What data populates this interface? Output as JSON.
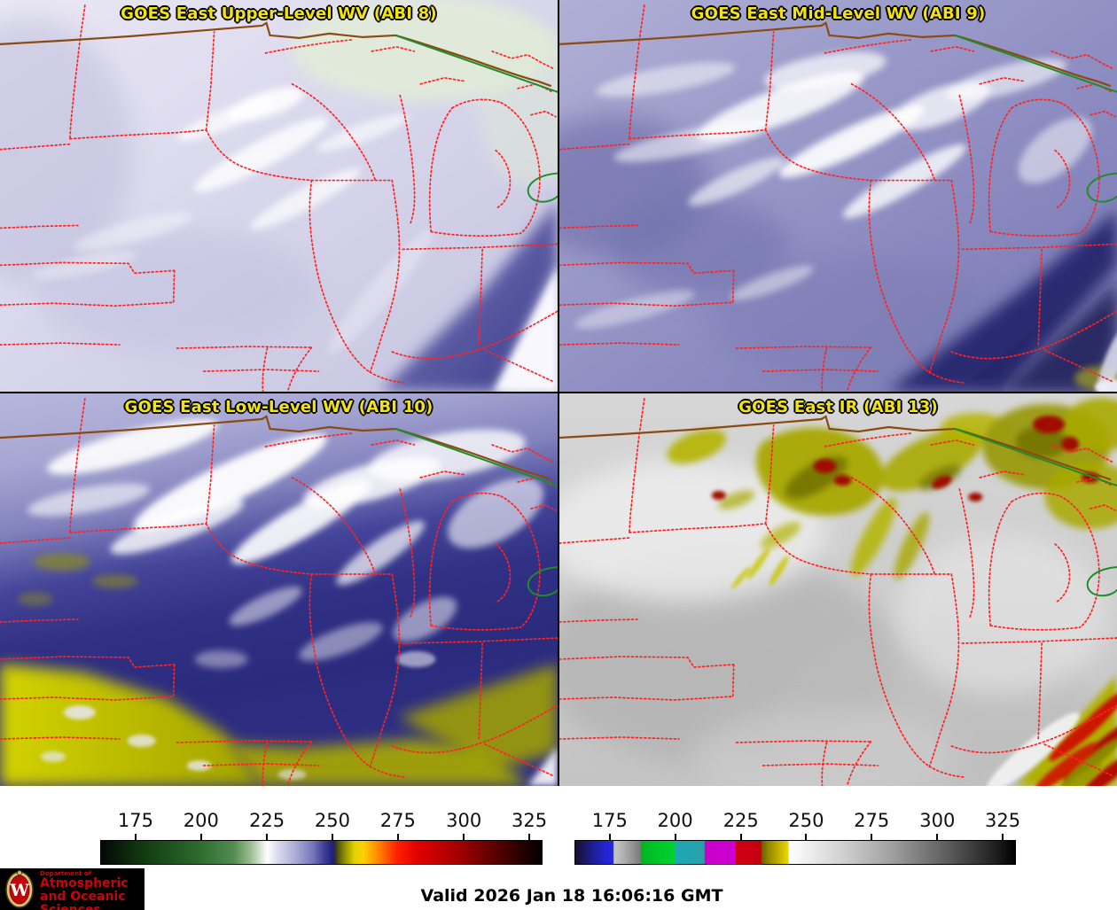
{
  "panels": [
    {
      "id": "abi8",
      "title": "GOES East Upper-Level WV (ABI 8)"
    },
    {
      "id": "abi9",
      "title": "GOES East Mid-Level WV (ABI 9)"
    },
    {
      "id": "abi10",
      "title": "GOES East Low-Level WV (ABI 10)"
    },
    {
      "id": "abi13",
      "title": "GOES East IR (ABI 13)"
    }
  ],
  "map_overlay": {
    "state_border_color": "#ff2323",
    "country_border_color": "#8a4a12",
    "green_line_color": "#1e8c28",
    "title_text_color": "#f2e414"
  },
  "colorbars": [
    {
      "id": "wv-colorbar",
      "ticks": [
        "175",
        "200",
        "225",
        "250",
        "275",
        "300",
        "325"
      ],
      "tick_positions_pct": [
        8.0,
        22.8,
        37.7,
        52.5,
        67.3,
        82.2,
        97.0
      ],
      "stops": [
        {
          "p": 0,
          "c": "#060606"
        },
        {
          "p": 4,
          "c": "#0a1c0a"
        },
        {
          "p": 8,
          "c": "#103310"
        },
        {
          "p": 15,
          "c": "#1c4f1c"
        },
        {
          "p": 22.8,
          "c": "#2e6e2e"
        },
        {
          "p": 30,
          "c": "#518c51"
        },
        {
          "p": 34,
          "c": "#9cbd94"
        },
        {
          "p": 37.7,
          "c": "#ffffff"
        },
        {
          "p": 40,
          "c": "#dcdcee"
        },
        {
          "p": 44,
          "c": "#adadd8"
        },
        {
          "p": 48,
          "c": "#7878bc"
        },
        {
          "p": 50.5,
          "c": "#42429a"
        },
        {
          "p": 52.5,
          "c": "#20207a"
        },
        {
          "p": 53,
          "c": "#26264e"
        },
        {
          "p": 53.6,
          "c": "#4c4c10"
        },
        {
          "p": 55.5,
          "c": "#969600"
        },
        {
          "p": 57.5,
          "c": "#e0d200"
        },
        {
          "p": 59.5,
          "c": "#ffd000"
        },
        {
          "p": 62.5,
          "c": "#ff9000"
        },
        {
          "p": 65.5,
          "c": "#ff4800"
        },
        {
          "p": 67.3,
          "c": "#ff1e00"
        },
        {
          "p": 72,
          "c": "#e00000"
        },
        {
          "p": 78,
          "c": "#b80000"
        },
        {
          "p": 82.2,
          "c": "#9a0000"
        },
        {
          "p": 88,
          "c": "#660000"
        },
        {
          "p": 93,
          "c": "#3c0000"
        },
        {
          "p": 97,
          "c": "#180000"
        },
        {
          "p": 100,
          "c": "#060000"
        }
      ]
    },
    {
      "id": "ir-colorbar",
      "ticks": [
        "175",
        "200",
        "225",
        "250",
        "275",
        "300",
        "325"
      ],
      "tick_positions_pct": [
        8.0,
        22.8,
        37.7,
        52.5,
        67.3,
        82.2,
        97.0
      ],
      "stops": [
        {
          "p": 0,
          "c": "#141030"
        },
        {
          "p": 2,
          "c": "#1b1760"
        },
        {
          "p": 4.5,
          "c": "#1e1e9e"
        },
        {
          "p": 7,
          "c": "#2424d4"
        },
        {
          "p": 8.6,
          "c": "#2626de"
        },
        {
          "p": 8.8,
          "c": "#c6c6c6"
        },
        {
          "p": 11,
          "c": "#b0b0b0"
        },
        {
          "p": 14.8,
          "c": "#7a7a7a"
        },
        {
          "p": 15,
          "c": "#00b41e"
        },
        {
          "p": 19,
          "c": "#00c828"
        },
        {
          "p": 22.6,
          "c": "#00d232"
        },
        {
          "p": 22.8,
          "c": "#1ea8b4"
        },
        {
          "p": 29.3,
          "c": "#28a0a8"
        },
        {
          "p": 29.5,
          "c": "#c800c8"
        },
        {
          "p": 36.3,
          "c": "#cc00d2"
        },
        {
          "p": 36.5,
          "c": "#d20014"
        },
        {
          "p": 42.2,
          "c": "#c2000e"
        },
        {
          "p": 42.4,
          "c": "#6a5e00"
        },
        {
          "p": 44,
          "c": "#978700"
        },
        {
          "p": 48.4,
          "c": "#ead800"
        },
        {
          "p": 48.6,
          "c": "#ffffff"
        },
        {
          "p": 60,
          "c": "#d4d4d4"
        },
        {
          "p": 72,
          "c": "#a0a0a0"
        },
        {
          "p": 85,
          "c": "#5a5a5a"
        },
        {
          "p": 95,
          "c": "#222222"
        },
        {
          "p": 100,
          "c": "#000000"
        }
      ]
    }
  ],
  "footer": {
    "valid_text": "Valid 2026 Jan 18 16:06:16 GMT",
    "logo": {
      "line1": "Department of",
      "line2": "Atmospheric",
      "line3": "and Oceanic Sciences",
      "letter": "W",
      "text_color": "#c5050c",
      "background": "#000000"
    }
  }
}
